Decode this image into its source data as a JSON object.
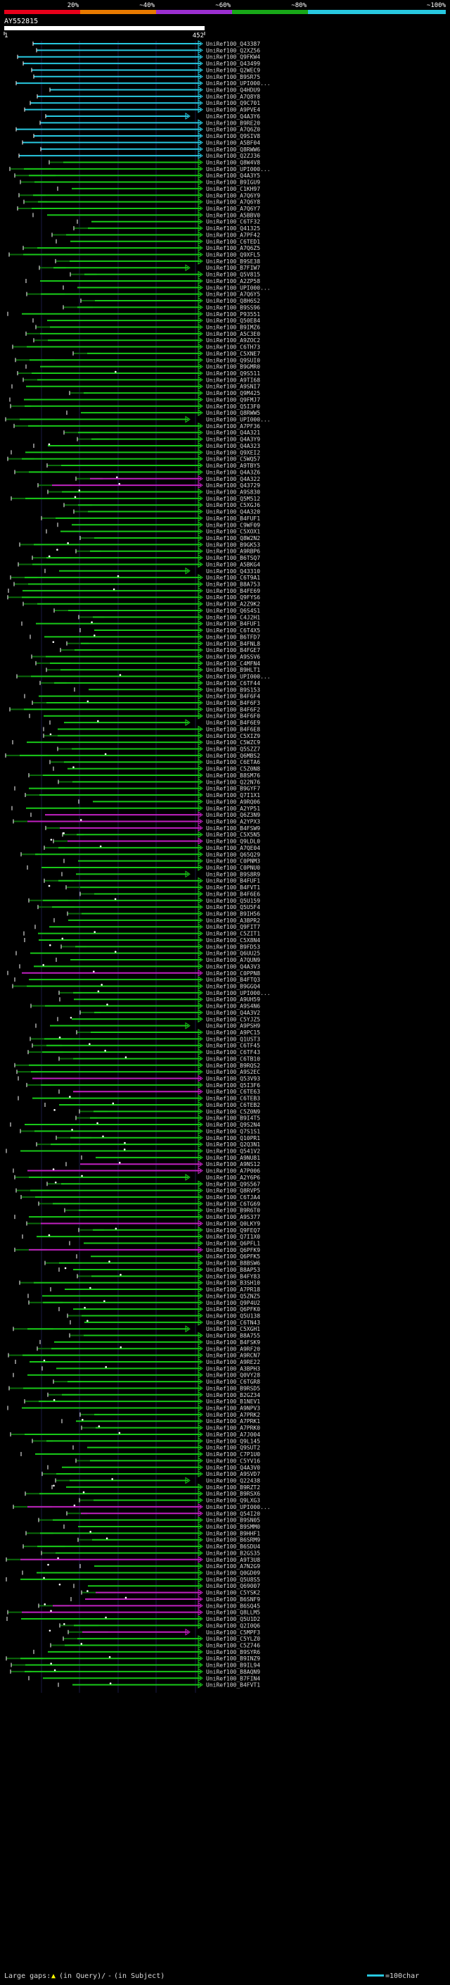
{
  "header": {
    "scale_labels": [
      "20%",
      "~40%",
      "~60%",
      "~80%",
      "~100%"
    ],
    "scale_colors": [
      "#e8001a",
      "#e87a00",
      "#9b2fd0",
      "#18a818",
      "#28c8e0"
    ],
    "query_id": "AY552815",
    "ruler_start": "1",
    "ruler_end": "452"
  },
  "colors": {
    "cyan": "#28c8e0",
    "green": "#18c818",
    "magenta": "#c020c0",
    "dark_green": "#0a6a0a",
    "background": "#000000",
    "grid": "#1a1a44",
    "label": "#d8d8d8",
    "arrow": "#ffffff"
  },
  "legend": {
    "large_gaps_label": "Large gaps:",
    "in_query_label": "(in Query)/",
    "in_subject_label": "(in Subject)",
    "scale_label": "=100char"
  },
  "hits": [
    "UniRef100_Q43387",
    "UniRef100_Q2XZ56",
    "UniRef100_Q9FKW4",
    "UniRef100_Q43499",
    "UniRef100_Q2WEC9",
    "UniRef100_B9SR75",
    "UniRef100_UPI000...",
    "UniRef100_Q4HDU9",
    "UniRef100_A7Q8Y8",
    "UniRef100_Q9C701",
    "UniRef100_A9PVE4",
    "UniRef100_Q4A3Y6",
    "UniRef100_B9RE20",
    "UniRef100_A7Q6Z0",
    "UniRef100_Q9SIV8",
    "UniRef100_A5BF04",
    "UniRef100_Q8RWW6",
    "UniRef100_Q2ZJ36",
    "UniRef100_Q8W4V8",
    "UniRef100_UPI000...",
    "UniRef100_Q4A3Y5",
    "UniRef100_B9IGU9",
    "UniRef100_C1KH97",
    "UniRef100_A7Q6Y9",
    "UniRef100_A7Q6Y8",
    "UniRef100_A7Q6Y7",
    "UniRef100_A5BBV0",
    "UniRef100_C6TF32",
    "UniRef100_Q41325",
    "UniRef100_A7PF42",
    "UniRef100_C6TED1",
    "UniRef100_A7Q6Z5",
    "UniRef100_Q9XFL5",
    "UniRef100_B9SE38",
    "UniRef100_B7FIW7",
    "UniRef100_Q5V815",
    "UniRef100_A2ZP58",
    "UniRef100_UPI000...",
    "UniRef100_A7Q6Y5",
    "UniRef100_Q8H6S2",
    "UniRef100_B9SS96",
    "UniRef100_P93551",
    "UniRef100_Q50E84",
    "UniRef100_B9IMZ6",
    "UniRef100_A5C3E0",
    "UniRef100_A9ZOC2",
    "UniRef100_C6TH73",
    "UniRef100_C5XNE7",
    "UniRef100_Q9SUI0",
    "UniRef100_B9GMR0",
    "UniRef100_Q9S511",
    "UniRef100_A9TI68",
    "UniRef100_A9SNI7",
    "UniRef100_Q9M425",
    "UniRef100_Q9FMJ7",
    "UniRef100_Q5I3F0",
    "UniRef100_Q8RWW5",
    "UniRef100_UPI000...",
    "UniRef100_A7PF36",
    "UniRef100_Q4A321",
    "UniRef100_Q4A3Y9",
    "UniRef100_Q4A323",
    "UniRef100_Q9XEI2",
    "UniRef100_C5WQ57",
    "UniRef100_A9TBY5",
    "UniRef100_Q4A3Z6",
    "UniRef100_Q4A322",
    "UniRef100_Q43729",
    "UniRef100_A9S830",
    "UniRef100_Q5M512",
    "UniRef100_C5XGJ6",
    "UniRef100_Q4A320",
    "UniRef100_B4FUF1",
    "UniRef100_C9WF09",
    "UniRef100_C5XOX1",
    "UniRef100_Q8W2N2",
    "UniRef100_B9GK53",
    "UniRef100_A9RBP6",
    "UniRef100_B6TSQ7",
    "UniRef100_A5BKG4",
    "UniRef100_Q43310",
    "UniRef100_C6T9A1",
    "UniRef100_B8A753",
    "UniRef100_B4FE69",
    "UniRef100_Q9FYS6",
    "UniRef100_A2Z9K2",
    "UniRef100_Q6S4S1",
    "UniRef100_C4J2H1",
    "UniRef100_B4FUF1",
    "UniRef100_C6T4X5",
    "UniRef100_B6TFD7",
    "UniRef100_B4FNL8",
    "UniRef100_B4FGE7",
    "UniRef100_A9SSV6",
    "UniRef100_C4MFN4",
    "UniRef100_B9HLT1",
    "UniRef100_UPI000...",
    "UniRef100_C6TF44",
    "UniRef100_B9S153",
    "UniRef100_B4F6F4",
    "UniRef100_B4F6F3",
    "UniRef100_B4F6F2",
    "UniRef100_B4F6F0",
    "UniRef100_B4F6E9",
    "UniRef100_B4F6E8",
    "UniRef100_C5XIZ9",
    "UniRef100_C5WZC9",
    "UniRef100_Q5SZZ7",
    "UniRef100_Q6MBS2",
    "UniRef100_C6ETA6",
    "UniRef100_C5Z0N8",
    "UniRef100_B8SM76",
    "UniRef100_Q22N76",
    "UniRef100_B9GYF7",
    "UniRef100_Q7I1X1",
    "UniRef100_A9RQ06",
    "UniRef100_A2YP51",
    "UniRef100_Q6Z3N9",
    "UniRef100_A2YPX3",
    "UniRef100_B4FSW9",
    "UniRef100_C5X5N5",
    "UniRef100_Q9LDL0",
    "UniRef100_A7QE04",
    "UniRef100_Q65Q29",
    "UniRef100_C0PNM3",
    "UniRef100_C0PNU0",
    "UniRef100_B9S8R9",
    "UniRef100_B4FUF1",
    "UniRef100_B4FVT1",
    "UniRef100_B4F6E6",
    "UniRef100_Q5U159",
    "UniRef100_Q5U5F4",
    "UniRef100_B9IH56",
    "UniRef100_A3BPR2",
    "UniRef100_Q9FIT7",
    "UniRef100_C5ZIT1",
    "UniRef100_C5X8N4",
    "UniRef100_B9FD53",
    "UniRef100_Q6UU25",
    "UniRef100_A7QUN9",
    "UniRef100_Q4A3V3",
    "UniRef100_C0PPN8",
    "UniRef100_B4FTQ3",
    "UniRef100_B9GGQ4",
    "UniRef100_UPI000...",
    "UniRef100_A9UH59",
    "UniRef100_A9S4N6",
    "UniRef100_Q4A3V2",
    "UniRef100_C5YJZ5",
    "UniRef100_A9PSH9",
    "UniRef100_A9PC15",
    "UniRef100_Q1UST3",
    "UniRef100_C6TF45",
    "UniRef100_C6TF43",
    "UniRef100_C6TB10",
    "UniRef100_B9RQS2",
    "UniRef100_A9S2EC",
    "UniRef100_Q53V93",
    "UniRef100_Q5I3F6",
    "UniRef100_C6TE63",
    "UniRef100_C6TEB3",
    "UniRef100_C6TEB2",
    "UniRef100_C5Z0N9",
    "UniRef100_B9I4T5",
    "UniRef100_Q9S2N4",
    "UniRef100_Q7S1S1",
    "UniRef100_Q10PR1",
    "UniRef100_Q2Q3N1",
    "UniRef100_Q541V2",
    "UniRef100_A9NU81",
    "UniRef100_A9NS12",
    "UniRef100_A7P006",
    "UniRef100_A2Y6P6",
    "UniRef100_Q9S567",
    "UniRef100_Q8RVP5",
    "UniRef100_C6TJA4",
    "UniRef100_C6TG69",
    "UniRef100_B9R6T0",
    "UniRef100_A9S377",
    "UniRef100_Q0LKY9",
    "UniRef100_Q9FEQ7",
    "UniRef100_Q7I1X0",
    "UniRef100_Q6PFL1",
    "UniRef100_Q6PFK9",
    "UniRef100_Q6PFK5",
    "UniRef100_B8BSW6",
    "UniRef100_B8AP53",
    "UniRef100_B4FY83",
    "UniRef100_B3SH10",
    "UniRef100_A7PR18",
    "UniRef100_Q5ZNZ5",
    "UniRef100_Q9P4U2",
    "UniRef100_Q6PFK0",
    "UniRef100_Q5U138",
    "UniRef100_C6TN43",
    "UniRef100_C5XGH1",
    "UniRef100_B8A755",
    "UniRef100_B4FSK9",
    "UniRef100_A9RF20",
    "UniRef100_A9RCN7",
    "UniRef100_A9RE22",
    "UniRef100_A3BPH3",
    "UniRef100_Q0VY28",
    "UniRef100_C6TGR8",
    "UniRef100_B9RSD5",
    "UniRef100_B2GZ34",
    "UniRef100_B1NEV1",
    "UniRef100_A9NPV3",
    "UniRef100_A7PRK2",
    "UniRef100_A7PRK1",
    "UniRef100_A7PRK0",
    "UniRef100_A7J004",
    "UniRef100_Q9L145",
    "UniRef100_Q9SUT2",
    "UniRef100_C7P1U0",
    "UniRef100_C5YV16",
    "UniRef100_Q4A3V0",
    "UniRef100_A9SVD7",
    "UniRef100_Q22438",
    "UniRef100_B9RZT2",
    "UniRef100_B9RSX6",
    "UniRef100_Q9LXG3",
    "UniRef100_UPI000...",
    "UniRef100_Q54I20",
    "UniRef100_B9SN05",
    "UniRef100_B9SMM0",
    "UniRef100_B9HHF1",
    "UniRef100_B6SRM9",
    "UniRef100_B6SDU4",
    "UniRef100_B2GS35",
    "UniRef100_A9T3U8",
    "UniRef100_A7N2G9",
    "UniRef100_Q0GD09",
    "UniRef100_Q5U8S5",
    "UniRef100_Q69007",
    "UniRef100_C5YSK2",
    "UniRef100_B6SNF9",
    "UniRef100_B6SQ45",
    "UniRef100_Q8LLM5",
    "UniRef100_Q5U1D2",
    "UniRef100_Q2I0Q6",
    "UniRef100_C5MPF3",
    "UniRef100_C5YLZ0",
    "UniRef100_C5Z746",
    "UniRef100_B9SYR6",
    "UniRef100_B9INZ9",
    "UniRef100_B9IL94",
    "UniRef100_B8AQN9",
    "UniRef100_B7FIN4",
    "UniRef100_B4FVT1"
  ]
}
